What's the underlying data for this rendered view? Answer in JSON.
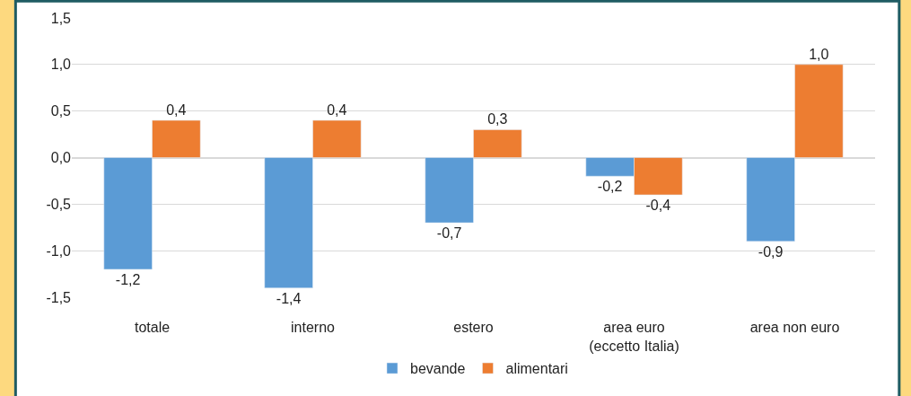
{
  "chart_data": {
    "type": "bar",
    "categories": [
      "totale",
      "interno",
      "estero",
      "area euro\n(eccetto Italia)",
      "area non euro"
    ],
    "series": [
      {
        "name": "bevande",
        "color": "#5b9bd5",
        "values": [
          -1.2,
          -1.4,
          -0.7,
          -0.2,
          -0.9
        ],
        "value_labels": [
          "-1,2",
          "-1,4",
          "-0,7",
          "-0,2",
          "-0,9"
        ]
      },
      {
        "name": "alimentari",
        "color": "#ed7d31",
        "values": [
          0.4,
          0.4,
          0.3,
          -0.4,
          1.0
        ],
        "value_labels": [
          "0,4",
          "0,4",
          "0,3",
          "-0,4",
          "1,0"
        ]
      }
    ],
    "ylim": [
      -1.5,
      1.5
    ],
    "yticks": [
      {
        "value": -1.5,
        "label": "-1,5"
      },
      {
        "value": -1.0,
        "label": "-1,0"
      },
      {
        "value": -0.5,
        "label": "-0,5"
      },
      {
        "value": 0.0,
        "label": "0,0"
      },
      {
        "value": 0.5,
        "label": "0,5"
      },
      {
        "value": 1.0,
        "label": "1,0"
      },
      {
        "value": 1.5,
        "label": "1,5"
      }
    ],
    "grid": "y",
    "legend": "bottom"
  }
}
